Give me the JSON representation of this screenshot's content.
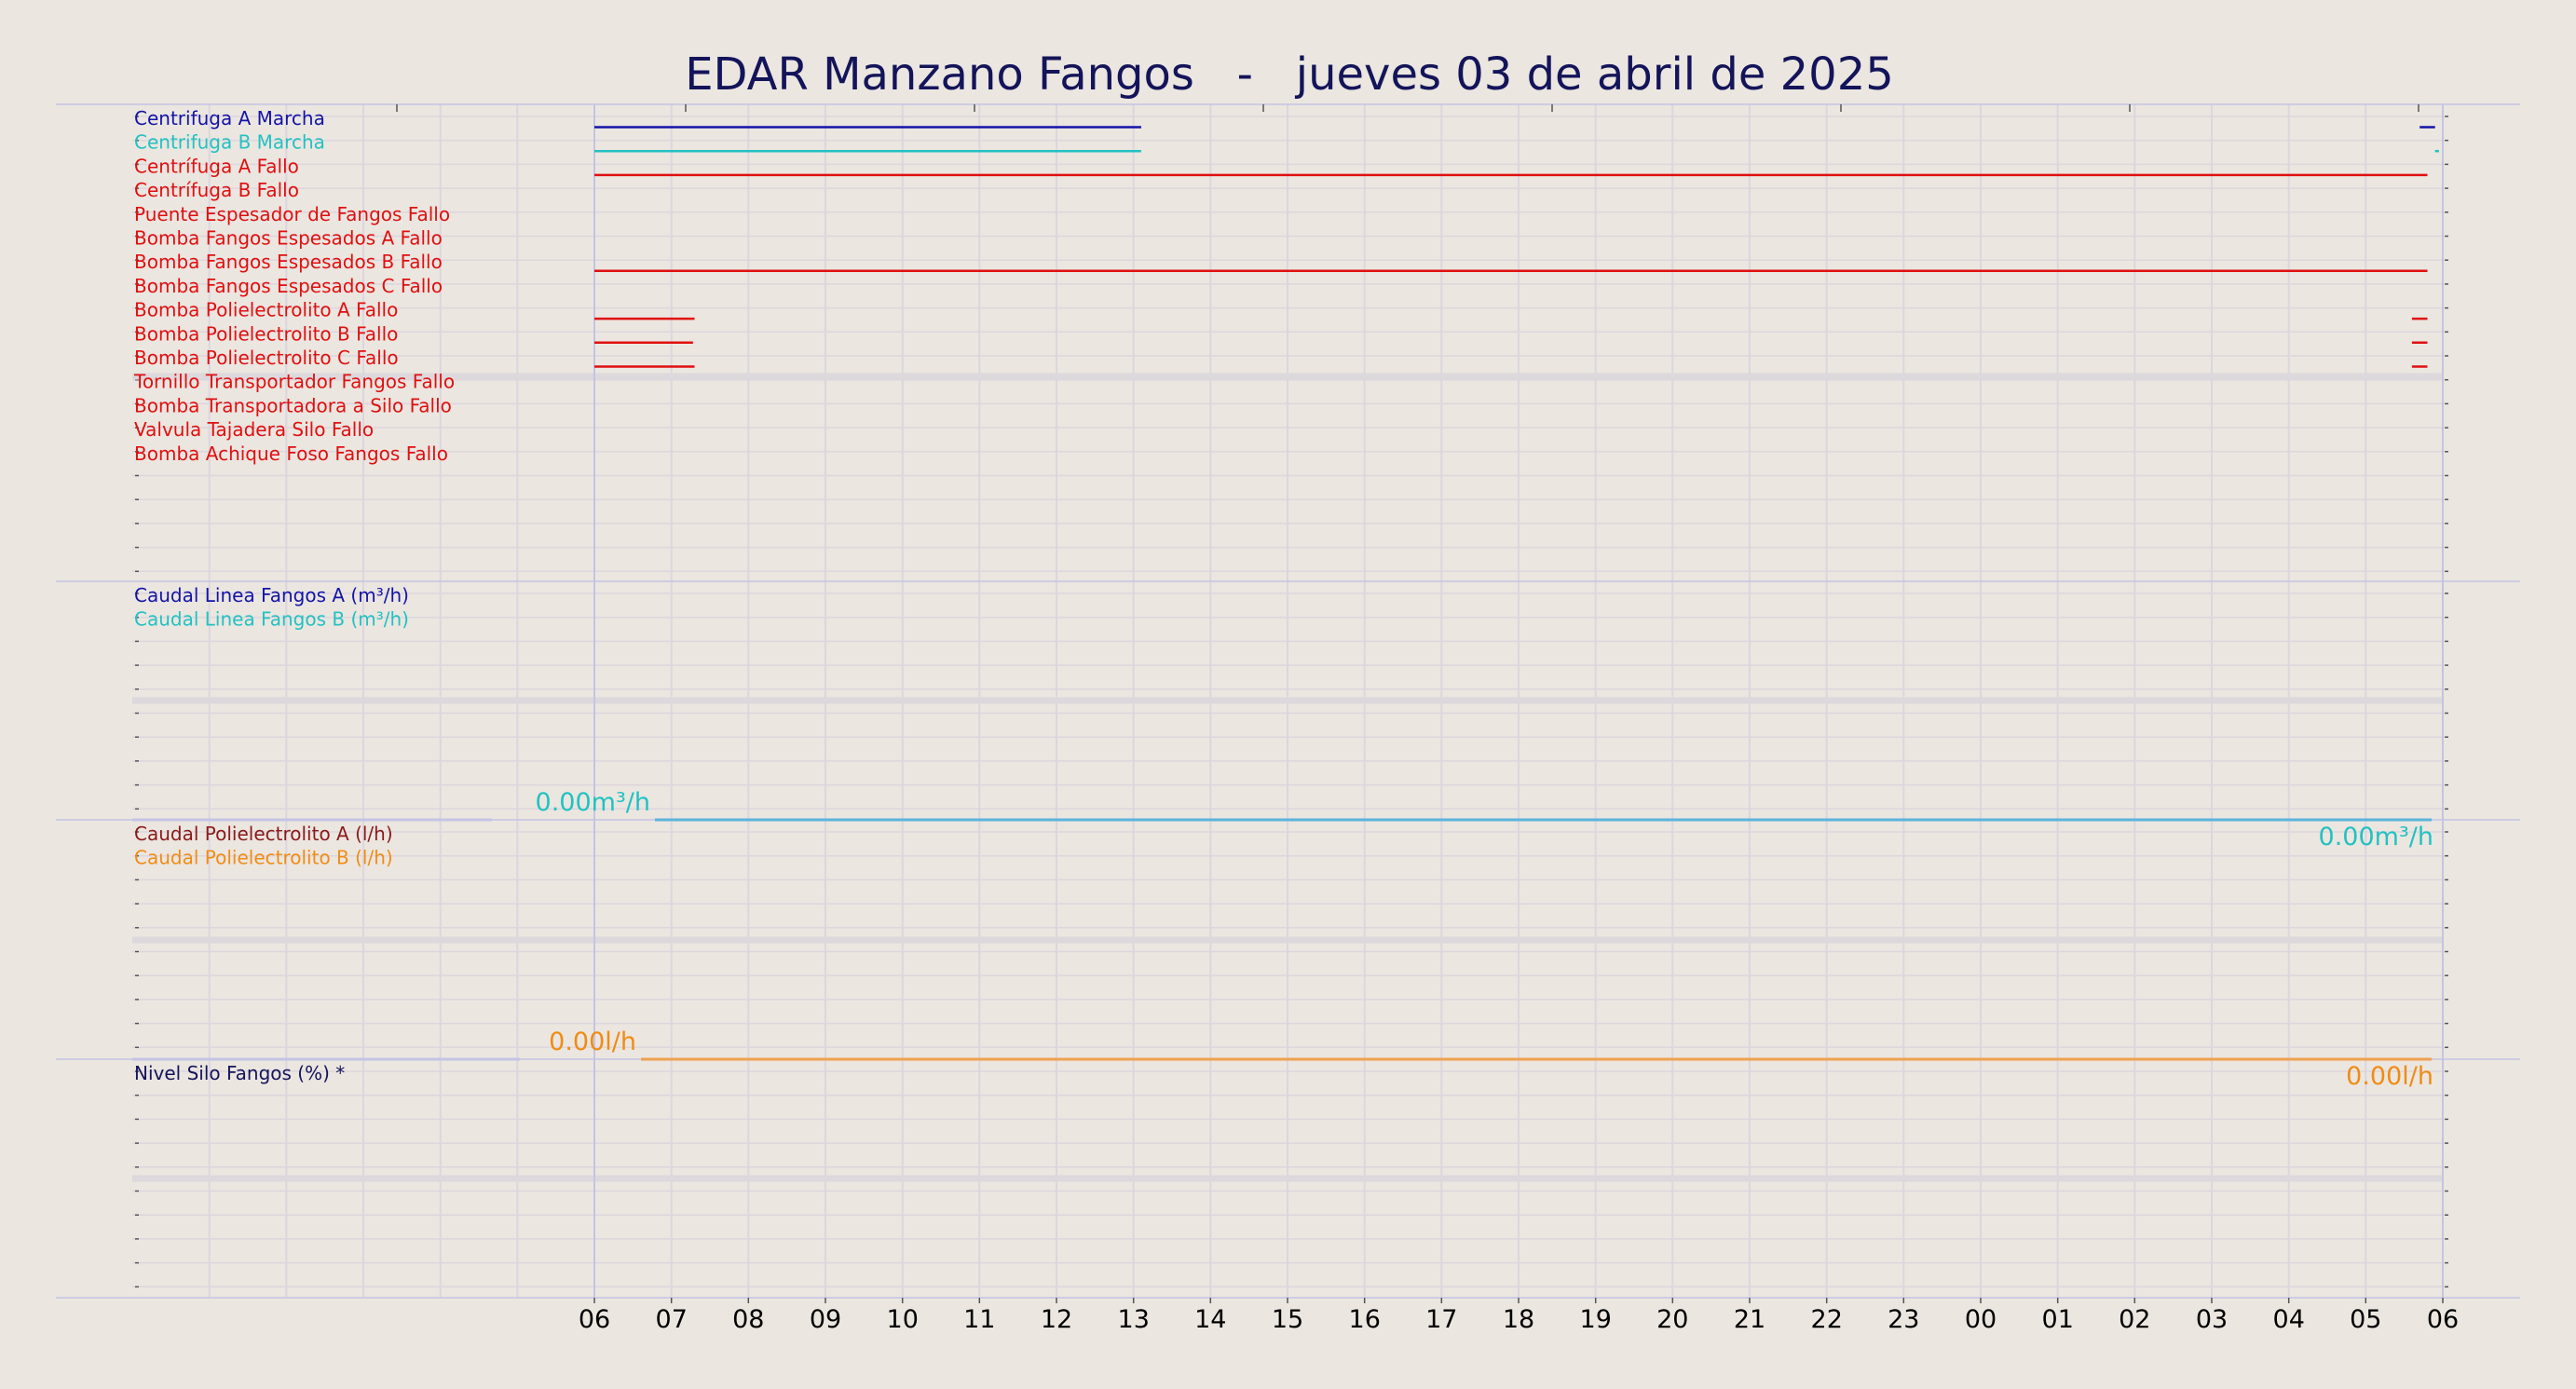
{
  "title": "EDAR Manzano Fangos   -   jueves 03 de abril de 2025",
  "chart_data": {
    "type": "line",
    "x_tick_labels": [
      "06",
      "07",
      "08",
      "09",
      "10",
      "11",
      "12",
      "13",
      "14",
      "15",
      "16",
      "17",
      "18",
      "19",
      "20",
      "21",
      "22",
      "23",
      "00",
      "01",
      "02",
      "03",
      "04",
      "05",
      "06"
    ],
    "x_unit": "hour",
    "grid": true,
    "panels": [
      {
        "id": "digital",
        "series": [
          {
            "name": "Centrifuga A Marcha",
            "color": "#1414a8",
            "segments": [
              [
                0,
                7.1
              ],
              [
                23.7,
                23.9
              ]
            ]
          },
          {
            "name": "Centrifuga B Marcha",
            "color": "#22c2c2",
            "segments": [
              [
                0,
                7.1
              ],
              [
                23.9,
                23.95
              ]
            ]
          },
          {
            "name": "Centrífuga A Fallo",
            "color": "#e01010",
            "segments": [
              [
                0,
                23.8
              ]
            ]
          },
          {
            "name": "Centrífuga B Fallo",
            "color": "#e01010",
            "segments": []
          },
          {
            "name": "Puente Espesador de Fangos Fallo",
            "color": "#e01010",
            "segments": []
          },
          {
            "name": "Bomba Fangos Espesados A Fallo",
            "color": "#e01010",
            "segments": []
          },
          {
            "name": "Bomba Fangos Espesados B Fallo",
            "color": "#e01010",
            "segments": [
              [
                0,
                23.8
              ]
            ]
          },
          {
            "name": "Bomba Fangos Espesados C Fallo",
            "color": "#e01010",
            "segments": []
          },
          {
            "name": "Bomba Polielectrolito A Fallo",
            "color": "#e01010",
            "segments": [
              [
                0,
                1.3
              ],
              [
                23.6,
                23.8
              ]
            ]
          },
          {
            "name": "Bomba Polielectrolito B Fallo",
            "color": "#e01010",
            "segments": [
              [
                0,
                1.28
              ],
              [
                23.6,
                23.8
              ]
            ]
          },
          {
            "name": "Bomba Polielectrolito C Fallo",
            "color": "#e01010",
            "segments": [
              [
                0,
                1.3
              ],
              [
                23.6,
                23.8
              ]
            ]
          },
          {
            "name": "Tornillo Transportador Fangos Fallo",
            "color": "#e01010",
            "segments": []
          },
          {
            "name": "Bomba Transportadora a Silo Fallo",
            "color": "#e01010",
            "segments": []
          },
          {
            "name": "Valvula Tajadera Silo Fallo",
            "color": "#e01010",
            "segments": []
          },
          {
            "name": "Bomba Achique Foso Fangos Fallo",
            "color": "#e01010",
            "segments": []
          }
        ]
      },
      {
        "id": "caudal-fangos",
        "series": [
          {
            "name": "Caudal Linea Fangos A (m³/h)",
            "color": "#1414a8",
            "values": [
              [
                0,
                0
              ],
              [
                24,
                0
              ]
            ]
          },
          {
            "name": "Caudal Linea Fangos B (m³/h)",
            "color": "#22c2c2",
            "values": [
              [
                0,
                0
              ],
              [
                24,
                0
              ]
            ]
          }
        ],
        "start_label": "0.00m³/h",
        "end_label": "0.00m³/h",
        "label_color": "#22c2c2",
        "line_color": "#5ab4dc"
      },
      {
        "id": "caudal-poli",
        "series": [
          {
            "name": "Caudal Polielectrolito A (l/h)",
            "color": "#8b1a1a",
            "values": [
              [
                0,
                0
              ],
              [
                24,
                0
              ]
            ]
          },
          {
            "name": "Caudal Polielectrolito B (l/h)",
            "color": "#f08c14",
            "values": [
              [
                0,
                0
              ],
              [
                24,
                0
              ]
            ]
          }
        ],
        "start_label": "0.00l/h",
        "end_label": "0.00l/h",
        "label_color": "#f08c14",
        "line_color": "#f0a050"
      },
      {
        "id": "nivel-silo",
        "series": [
          {
            "name": "Nivel Silo Fangos (%) *",
            "color": "#14145a",
            "values": []
          }
        ]
      }
    ]
  },
  "colors": {
    "background": "#ebe6e0",
    "title": "#14145a",
    "grid": "#dcd6de",
    "divider": "#c4c4e4",
    "tick_text": "#000000"
  }
}
